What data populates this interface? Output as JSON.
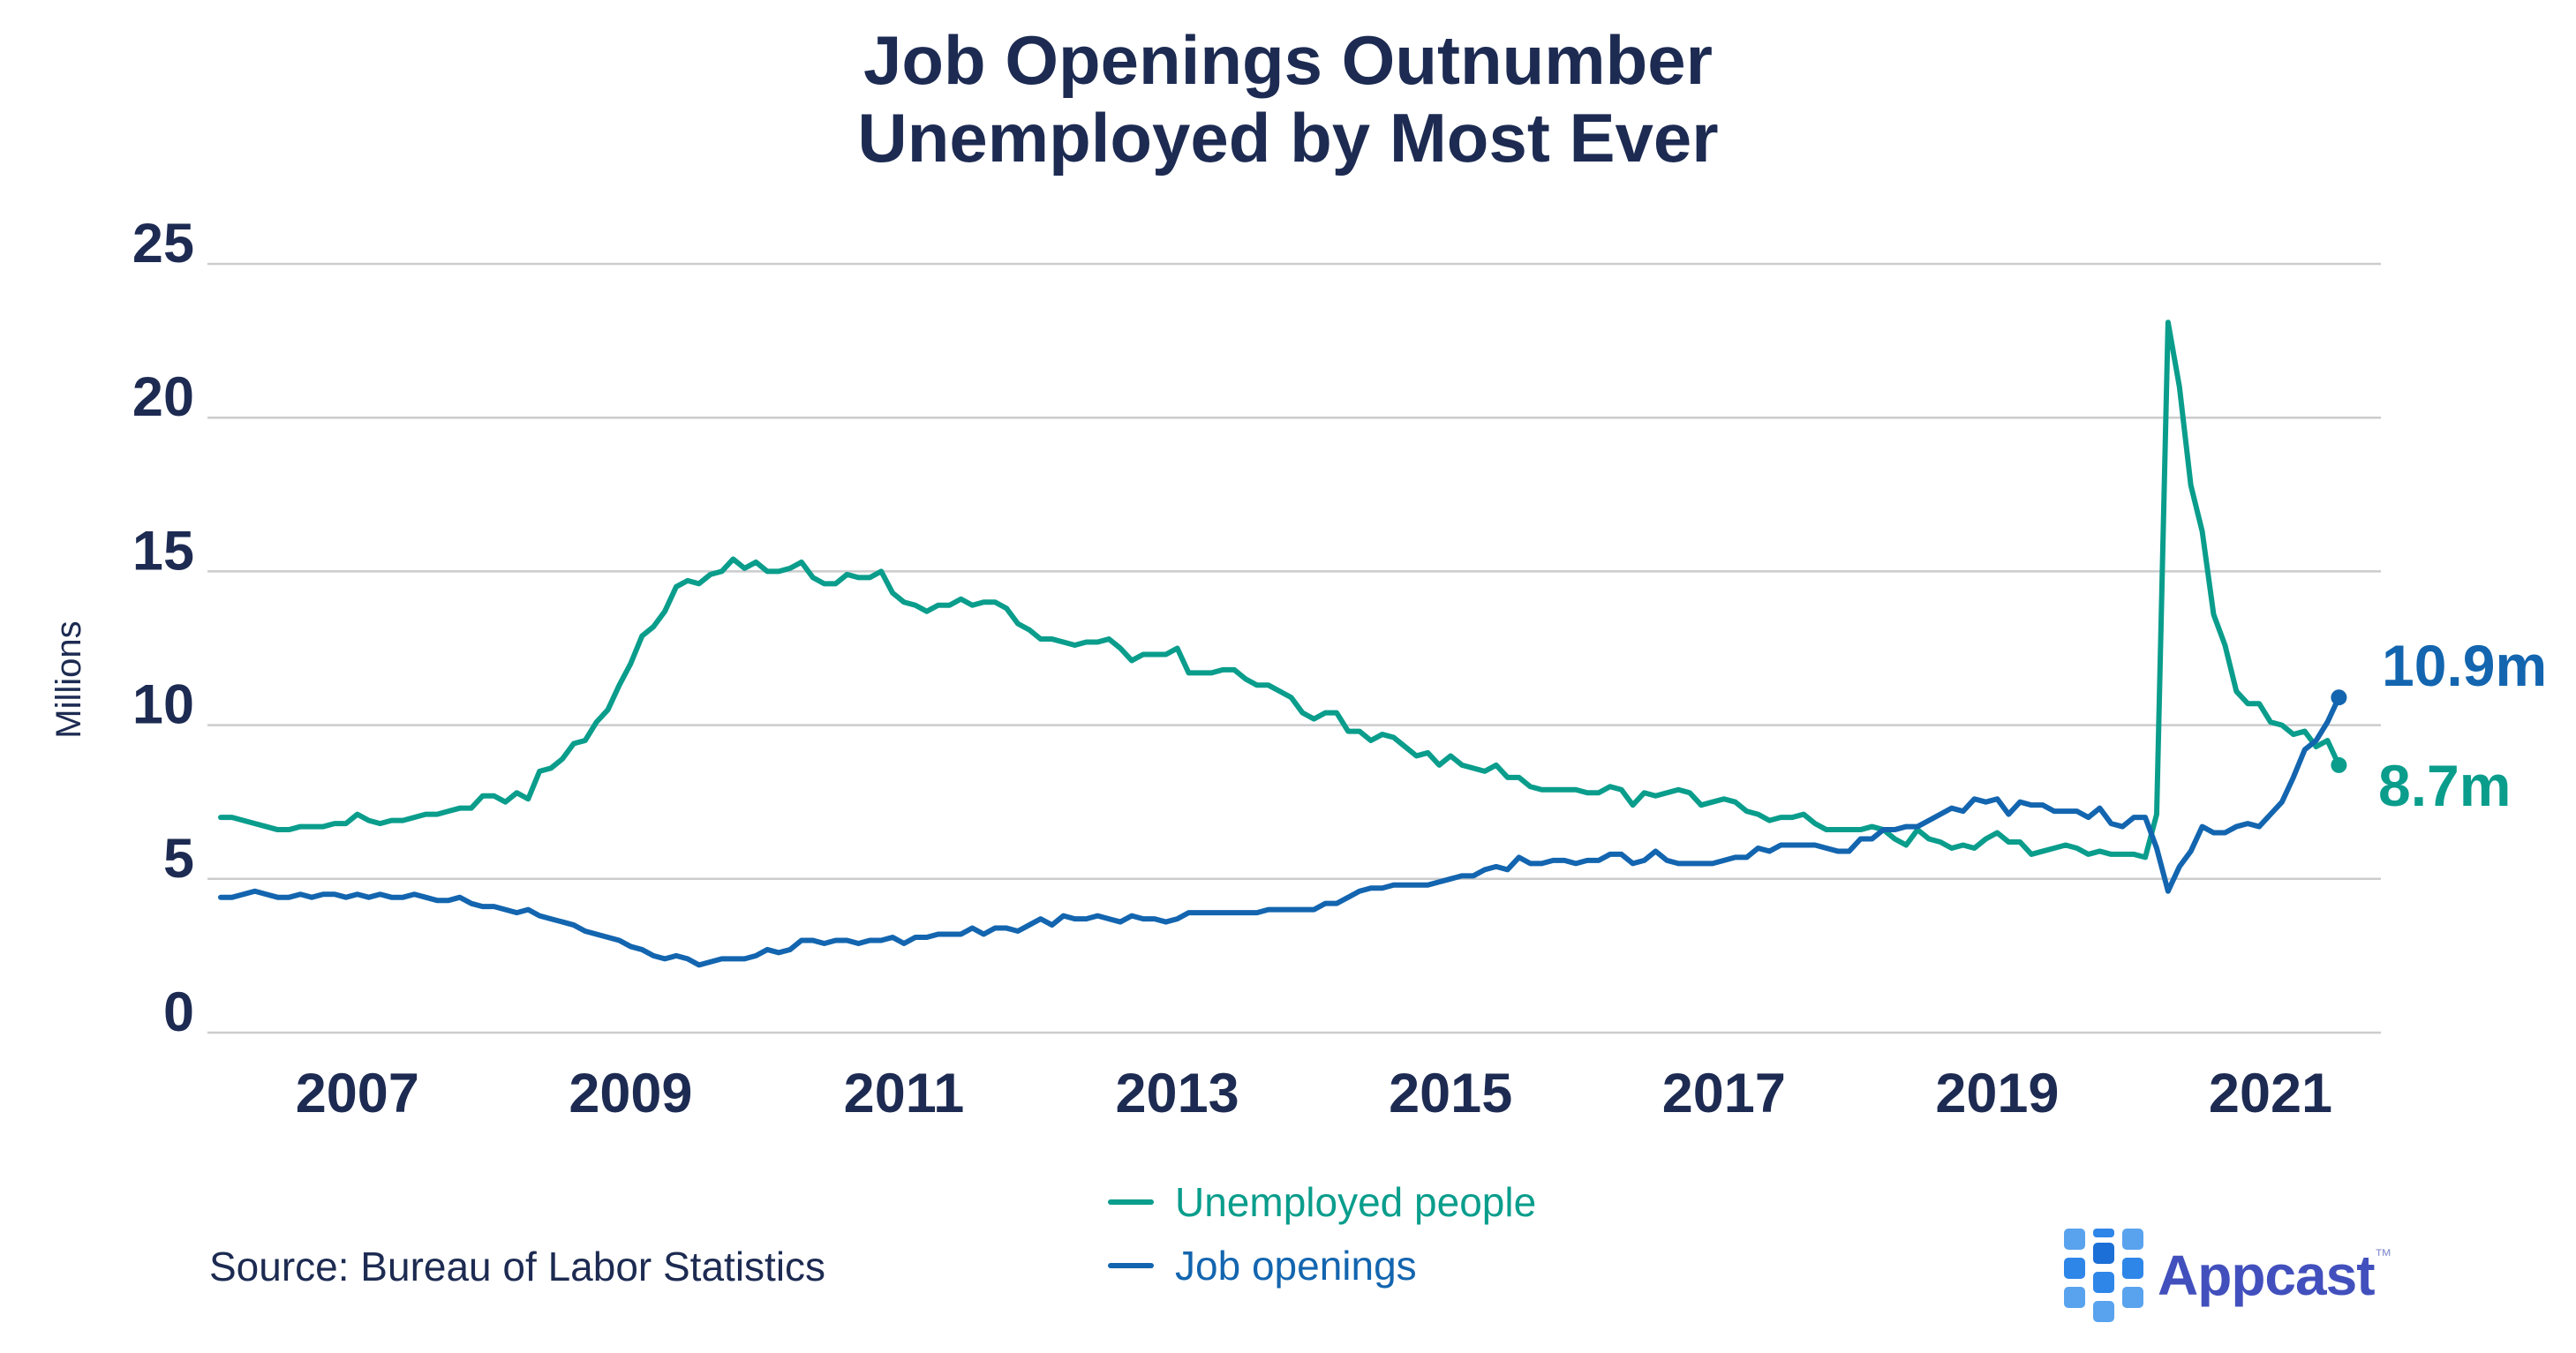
{
  "title": {
    "line1": "Job Openings Outnumber",
    "line2": "Unemployed by Most Ever"
  },
  "source": "Source: Bureau of Labor Statistics",
  "branding": {
    "name": "Appcast",
    "trademark": "™"
  },
  "colors": {
    "navy": "#1d2b52",
    "teal": "#0a9d8c",
    "blue": "#1365af",
    "gridline": "#cbcccd",
    "logo_indigo": "#4250bd",
    "logo_square_light": "#59a3ee",
    "logo_square_mid": "#2e86e8",
    "logo_square_dark": "#1b6fd6"
  },
  "chart_data": {
    "type": "line",
    "title": "Job Openings Outnumber Unemployed by Most Ever",
    "xlabel": "",
    "ylabel": "Millions",
    "ylim": [
      0,
      25
    ],
    "y_ticks": [
      0,
      5,
      10,
      15,
      20,
      25
    ],
    "x_tick_labels": [
      "2007",
      "2009",
      "2011",
      "2013",
      "2015",
      "2017",
      "2019",
      "2021"
    ],
    "x_start": "2006-01",
    "x_end": "2021-07",
    "frequency": "monthly",
    "grid": "horizontal",
    "legend_position": "bottom",
    "series": [
      {
        "id": "unemployed",
        "name": "Unemployed people",
        "color": "#0a9d8c",
        "end_label": "8.7m",
        "values": [
          7.0,
          7.0,
          6.9,
          6.8,
          6.7,
          6.6,
          6.6,
          6.7,
          6.7,
          6.7,
          6.8,
          6.8,
          7.1,
          6.9,
          6.8,
          6.9,
          6.9,
          7.0,
          7.1,
          7.1,
          7.2,
          7.3,
          7.3,
          7.7,
          7.7,
          7.5,
          7.8,
          7.6,
          8.5,
          8.6,
          8.9,
          9.4,
          9.5,
          10.1,
          10.5,
          11.3,
          12.0,
          12.9,
          13.2,
          13.7,
          14.5,
          14.7,
          14.6,
          14.9,
          15.0,
          15.4,
          15.1,
          15.3,
          15.0,
          15.0,
          15.1,
          15.3,
          14.8,
          14.6,
          14.6,
          14.9,
          14.8,
          14.8,
          15.0,
          14.3,
          14.0,
          13.9,
          13.7,
          13.9,
          13.9,
          14.1,
          13.9,
          14.0,
          14.0,
          13.8,
          13.3,
          13.1,
          12.8,
          12.8,
          12.7,
          12.6,
          12.7,
          12.7,
          12.8,
          12.5,
          12.1,
          12.3,
          12.3,
          12.3,
          12.5,
          11.7,
          11.7,
          11.7,
          11.8,
          11.8,
          11.5,
          11.3,
          11.3,
          11.1,
          10.9,
          10.4,
          10.2,
          10.4,
          10.4,
          9.8,
          9.8,
          9.5,
          9.7,
          9.6,
          9.3,
          9.0,
          9.1,
          8.7,
          9.0,
          8.7,
          8.6,
          8.5,
          8.7,
          8.3,
          8.3,
          8.0,
          7.9,
          7.9,
          7.9,
          7.9,
          7.8,
          7.8,
          8.0,
          7.9,
          7.4,
          7.8,
          7.7,
          7.8,
          7.9,
          7.8,
          7.4,
          7.5,
          7.6,
          7.5,
          7.2,
          7.1,
          6.9,
          7.0,
          7.0,
          7.1,
          6.8,
          6.6,
          6.6,
          6.6,
          6.6,
          6.7,
          6.6,
          6.3,
          6.1,
          6.6,
          6.3,
          6.2,
          6.0,
          6.1,
          6.0,
          6.3,
          6.5,
          6.2,
          6.2,
          5.8,
          5.9,
          6.0,
          6.1,
          6.0,
          5.8,
          5.9,
          5.8,
          5.8,
          5.8,
          5.7,
          7.1,
          23.1,
          21.0,
          17.8,
          16.3,
          13.6,
          12.6,
          11.1,
          10.7,
          10.7,
          10.1,
          10.0,
          9.7,
          9.8,
          9.3,
          9.5,
          8.7
        ]
      },
      {
        "id": "job_openings",
        "name": "Job openings",
        "color": "#1365af",
        "end_label": "10.9m",
        "values": [
          4.4,
          4.4,
          4.5,
          4.6,
          4.5,
          4.4,
          4.4,
          4.5,
          4.4,
          4.5,
          4.5,
          4.4,
          4.5,
          4.4,
          4.5,
          4.4,
          4.4,
          4.5,
          4.4,
          4.3,
          4.3,
          4.4,
          4.2,
          4.1,
          4.1,
          4.0,
          3.9,
          4.0,
          3.8,
          3.7,
          3.6,
          3.5,
          3.3,
          3.2,
          3.1,
          3.0,
          2.8,
          2.7,
          2.5,
          2.4,
          2.5,
          2.4,
          2.2,
          2.3,
          2.4,
          2.4,
          2.4,
          2.5,
          2.7,
          2.6,
          2.7,
          3.0,
          3.0,
          2.9,
          3.0,
          3.0,
          2.9,
          3.0,
          3.0,
          3.1,
          2.9,
          3.1,
          3.1,
          3.2,
          3.2,
          3.2,
          3.4,
          3.2,
          3.4,
          3.4,
          3.3,
          3.5,
          3.7,
          3.5,
          3.8,
          3.7,
          3.7,
          3.8,
          3.7,
          3.6,
          3.8,
          3.7,
          3.7,
          3.6,
          3.7,
          3.9,
          3.9,
          3.9,
          3.9,
          3.9,
          3.9,
          3.9,
          4.0,
          4.0,
          4.0,
          4.0,
          4.0,
          4.2,
          4.2,
          4.4,
          4.6,
          4.7,
          4.7,
          4.8,
          4.8,
          4.8,
          4.8,
          4.9,
          5.0,
          5.1,
          5.1,
          5.3,
          5.4,
          5.3,
          5.7,
          5.5,
          5.5,
          5.6,
          5.6,
          5.5,
          5.6,
          5.6,
          5.8,
          5.8,
          5.5,
          5.6,
          5.9,
          5.6,
          5.5,
          5.5,
          5.5,
          5.5,
          5.6,
          5.7,
          5.7,
          6.0,
          5.9,
          6.1,
          6.1,
          6.1,
          6.1,
          6.0,
          5.9,
          5.9,
          6.3,
          6.3,
          6.6,
          6.6,
          6.7,
          6.7,
          6.9,
          7.1,
          7.3,
          7.2,
          7.6,
          7.5,
          7.6,
          7.1,
          7.5,
          7.4,
          7.4,
          7.2,
          7.2,
          7.2,
          7.0,
          7.3,
          6.8,
          6.7,
          7.0,
          7.0,
          6.0,
          4.6,
          5.4,
          5.9,
          6.7,
          6.5,
          6.5,
          6.7,
          6.8,
          6.7,
          7.1,
          7.5,
          8.3,
          9.2,
          9.5,
          10.1,
          10.9
        ]
      }
    ]
  }
}
